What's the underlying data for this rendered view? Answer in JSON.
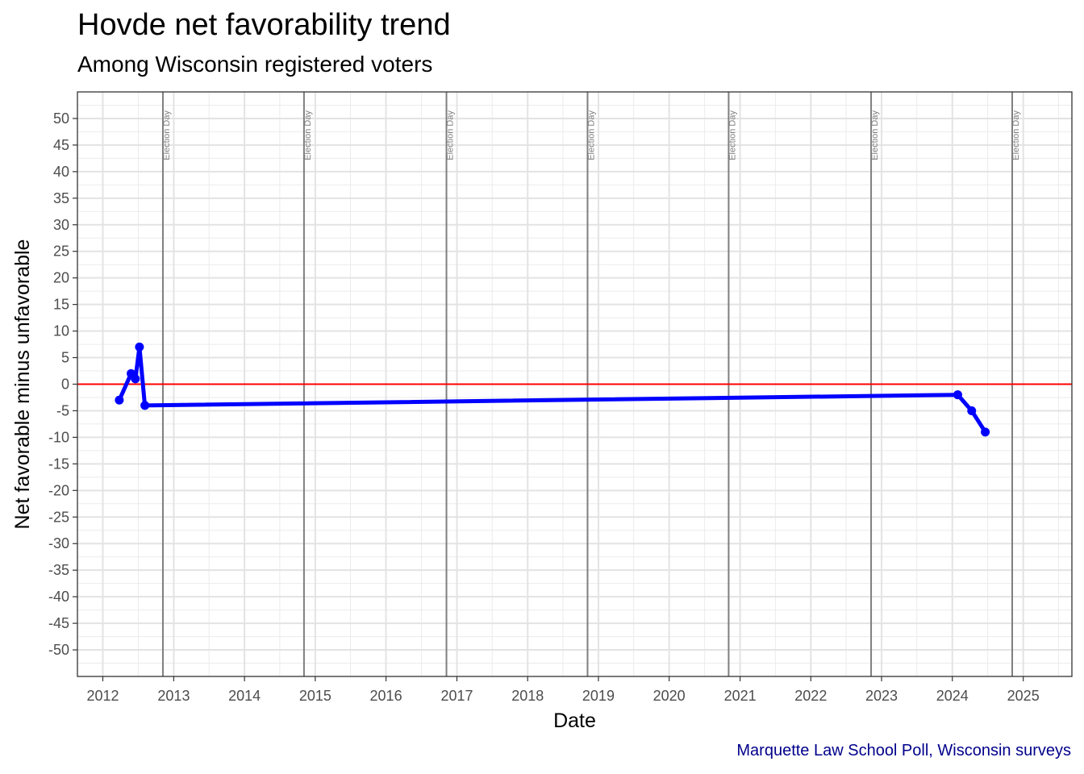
{
  "chart_data": {
    "type": "line",
    "title": "Hovde net favorability trend",
    "subtitle": "Among Wisconsin registered voters",
    "xlabel": "Date",
    "ylabel": "Net favorable minus unfavorable",
    "caption": "Marquette Law School Poll, Wisconsin surveys",
    "xlim": [
      "2011-08-23",
      "2025-09-09"
    ],
    "ylim": [
      -55,
      55
    ],
    "x_ticks": [
      "2012",
      "2013",
      "2014",
      "2015",
      "2016",
      "2017",
      "2018",
      "2019",
      "2020",
      "2021",
      "2022",
      "2023",
      "2024",
      "2025"
    ],
    "y_ticks": [
      50,
      45,
      40,
      35,
      30,
      25,
      20,
      15,
      10,
      5,
      0,
      -5,
      -10,
      -15,
      -20,
      -25,
      -30,
      -35,
      -40,
      -45,
      -50
    ],
    "grid": true,
    "reference_line": {
      "y": 0,
      "color": "#ff0000"
    },
    "election_days": {
      "label": "Election Day",
      "dates": [
        "2012-11-06",
        "2014-11-04",
        "2016-11-08",
        "2018-11-06",
        "2020-11-03",
        "2022-11-08",
        "2024-11-05"
      ],
      "color": "#7f7f7f"
    },
    "series": [
      {
        "color": "#0000ff",
        "x": [
          "2012-03-26",
          "2012-05-26",
          "2012-06-17",
          "2012-07-08",
          "2012-08-05",
          "2024-01-29",
          "2024-04-10",
          "2024-06-19"
        ],
        "y": [
          -3,
          2,
          1,
          7,
          -4,
          -2,
          -5,
          -9
        ]
      }
    ]
  }
}
